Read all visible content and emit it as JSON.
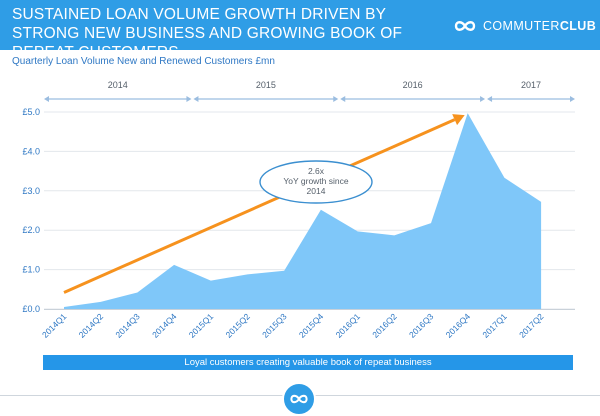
{
  "header": {
    "title": "SUSTAINED LOAN VOLUME GROWTH DRIVEN BY STRONG NEW BUSINESS AND GROWING BOOK OF REPEAT CUSTOMERS",
    "brand_prefix": "COMMUTER",
    "brand_suffix": "CLUB",
    "brand_icon": "infinity-loop-icon"
  },
  "chart_data": {
    "type": "area",
    "title": "Quarterly Loan Volume New and Renewed Customers £mn",
    "categories": [
      "2014Q1",
      "2014Q2",
      "2014Q3",
      "2014Q4",
      "2015Q1",
      "2015Q2",
      "2015Q3",
      "2015Q4",
      "2016Q1",
      "2016Q2",
      "2016Q3",
      "2016Q4",
      "2017Q1",
      "2017Q2"
    ],
    "values": [
      0.05,
      0.18,
      0.42,
      1.12,
      0.72,
      0.88,
      0.97,
      2.52,
      1.97,
      1.87,
      2.18,
      4.97,
      3.33,
      2.72
    ],
    "ylim": [
      0,
      5.0
    ],
    "ytick_labels": [
      "£0.0",
      "£1.0",
      "£2.0",
      "£3.0",
      "£4.0",
      "£5.0"
    ],
    "grid": true,
    "fill_color": "#7fc7f9",
    "years": [
      {
        "label": "2014",
        "start": "2014Q1",
        "end": "2014Q4"
      },
      {
        "label": "2015",
        "start": "2015Q1",
        "end": "2015Q4"
      },
      {
        "label": "2016",
        "start": "2016Q1",
        "end": "2016Q4"
      },
      {
        "label": "2017",
        "start": "2017Q1",
        "end": "2017Q2"
      }
    ],
    "trend_arrow": {
      "color": "#f6921e",
      "from_value": 0.42,
      "to_value": 4.97
    },
    "annotation": {
      "lines": [
        "2.6x",
        "YoY growth since",
        "2014"
      ]
    }
  },
  "banner": {
    "text": "Loyal customers creating valuable book of repeat business"
  },
  "colors": {
    "header": "#2f9de6",
    "accent_blue": "#2596e8",
    "arrow_orange": "#f6921e",
    "area_fill": "#7fc7f9"
  }
}
